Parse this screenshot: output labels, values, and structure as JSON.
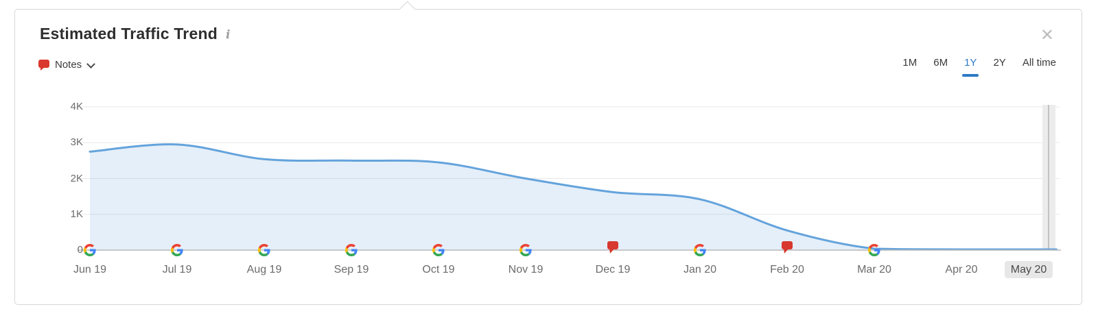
{
  "panel": {
    "title": "Estimated Traffic Trend",
    "info_icon": "i",
    "notes_label": "Notes",
    "close_icon": "✕",
    "time_ranges": [
      {
        "label": "1M",
        "active": false
      },
      {
        "label": "6M",
        "active": false
      },
      {
        "label": "1Y",
        "active": true
      },
      {
        "label": "2Y",
        "active": false
      },
      {
        "label": "All time",
        "active": false
      }
    ]
  },
  "colors": {
    "line": "#64a3dc",
    "area_fill": "rgba(100,163,220,0.17)",
    "grid": "#e7e7e7",
    "axis": "#b9b9b9",
    "highlight_band": "#ececec",
    "highlight_band_line": "#b3b3b3",
    "note_red": "#d8382e",
    "active_tab_blue": "#2d7ac6",
    "google_blue": "#4285F4",
    "google_red": "#EA4335",
    "google_yellow": "#FBBC05",
    "google_green": "#34A853"
  },
  "chart_data": {
    "type": "area",
    "title": "Estimated Traffic Trend",
    "series_name": "Estimated Traffic",
    "unit": "K (thousands of visits)",
    "x_labels": [
      "Jun 19",
      "Jul 19",
      "Aug 19",
      "Sep 19",
      "Oct 19",
      "Nov 19",
      "Dec 19",
      "Jan 20",
      "Feb 20",
      "Mar 20",
      "Apr 20",
      "May 20"
    ],
    "values_k": [
      2.75,
      2.95,
      2.54,
      2.5,
      2.45,
      2.0,
      1.62,
      1.42,
      0.55,
      0.04,
      0.02,
      0.02
    ],
    "y_ticks": [
      {
        "label": "4K",
        "value": 4
      },
      {
        "label": "3K",
        "value": 3
      },
      {
        "label": "2K",
        "value": 2
      },
      {
        "label": "1K",
        "value": 1
      },
      {
        "label": "0",
        "value": 0
      }
    ],
    "ylim": [
      0,
      4
    ],
    "grid": true,
    "legend": "none",
    "markers": [
      "google",
      "google",
      "google",
      "google",
      "google",
      "google",
      "note",
      "google",
      "note",
      "google",
      null,
      null
    ],
    "marker_meaning": {
      "google": "google-algorithm-update",
      "note": "user-note"
    },
    "highlighted_x_label": "May 20"
  }
}
